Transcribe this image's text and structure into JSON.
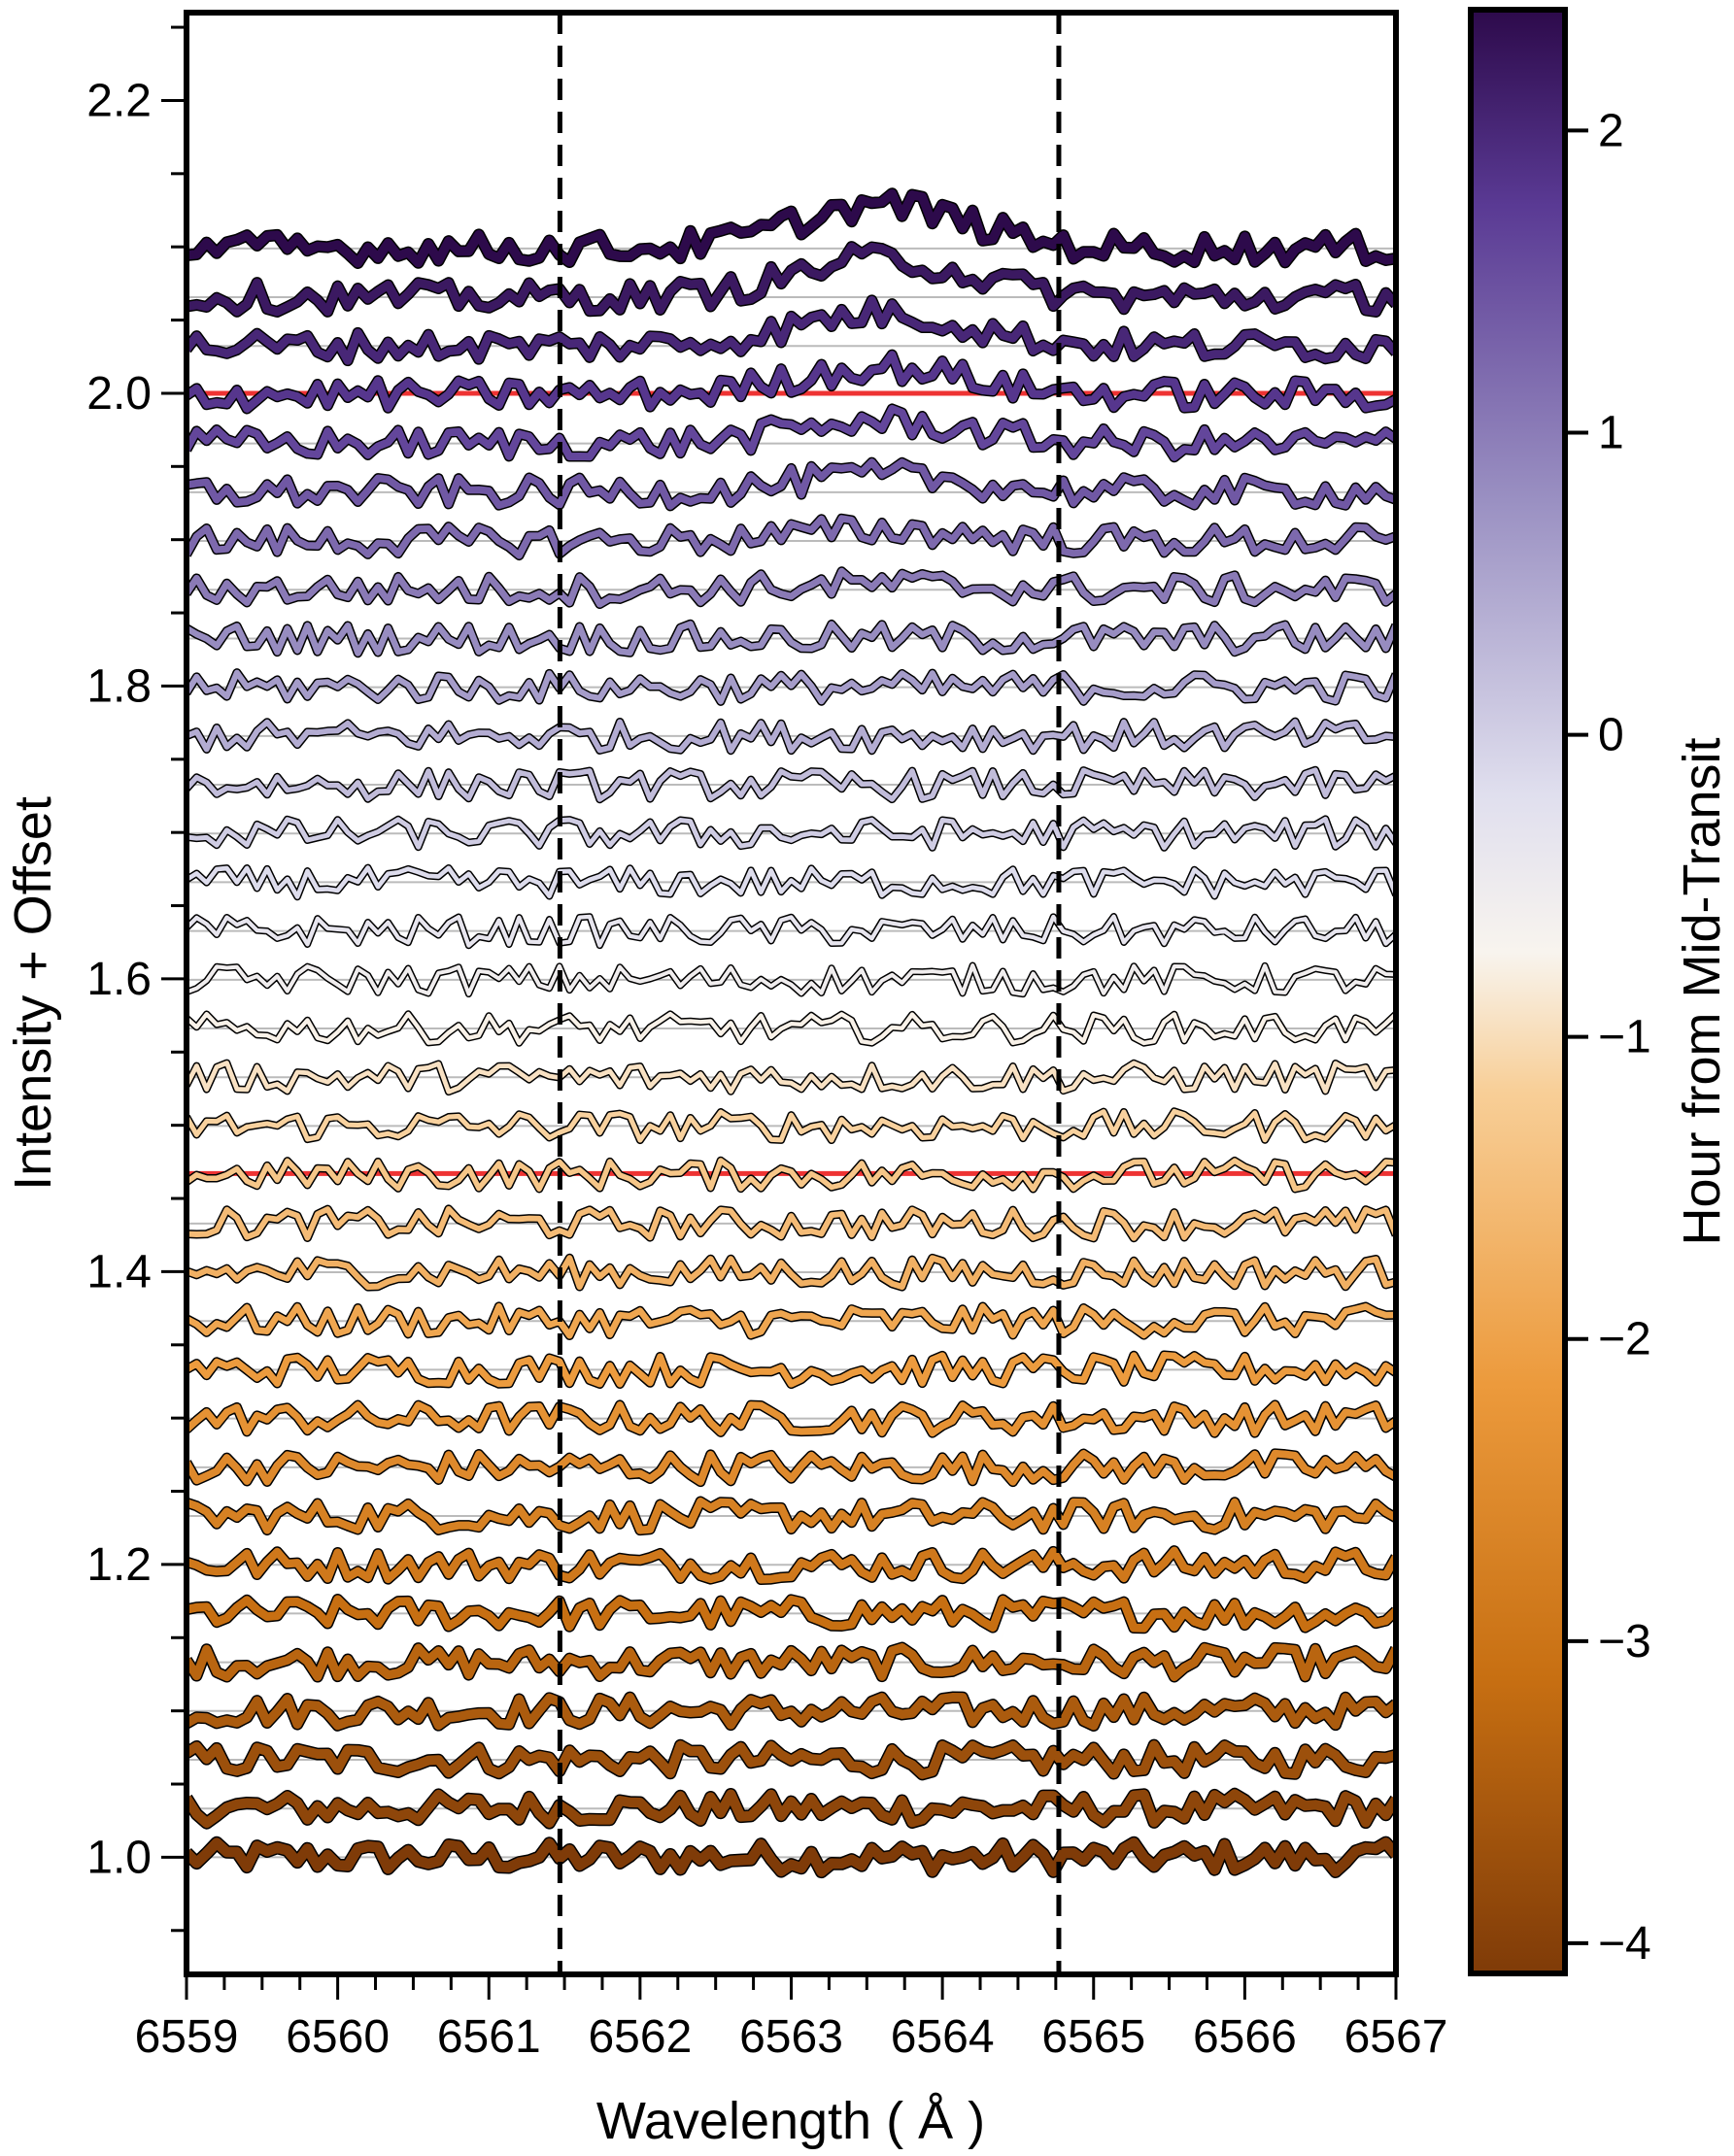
{
  "chart_data": {
    "type": "line",
    "xlabel": "Wavelength ( Å )",
    "ylabel": "Intensity + Offset",
    "xlim": [
      6559.0,
      6567.0
    ],
    "ylim": [
      0.92,
      2.26
    ],
    "x_ticks": [
      6559,
      6560,
      6561,
      6562,
      6563,
      6564,
      6565,
      6566,
      6567
    ],
    "x_tick_labels": [
      "6559",
      "6560",
      "6561",
      "6562",
      "6563",
      "6564",
      "6565",
      "6566",
      "6567"
    ],
    "y_ticks": [
      1.0,
      1.2,
      1.4,
      1.6,
      1.8,
      2.0,
      2.2
    ],
    "y_tick_labels": [
      "1.0",
      "1.2",
      "1.4",
      "1.6",
      "1.8",
      "2.0",
      "2.2"
    ],
    "vertical_lines": [
      6561.47,
      6564.77
    ],
    "red_reference_lines": [
      1.467,
      2.0
    ],
    "n_spectra": 34,
    "offset_step": 0.0333,
    "base_level": 1.0,
    "noise_amplitude": 0.01,
    "emission_feature": {
      "center": 6563.6,
      "width": 0.8,
      "max_amplitude": 0.03,
      "starting_spectrum_index": 26
    },
    "colorbar": {
      "label": "Hour from Mid-Transit",
      "range": [
        -4.1,
        2.4
      ],
      "ticks": [
        2,
        1,
        0,
        -1,
        -2,
        -3,
        -4
      ],
      "tick_labels": [
        "2",
        "1",
        "0",
        "−1",
        "−2",
        "−3",
        "−4"
      ],
      "colors": {
        "top": "#2d0a4b",
        "upper": "#5a3a94",
        "upper_mid": "#9a90c2",
        "mid": "#e0dfee",
        "center": "#f8f4ee",
        "lower_mid": "#f8cf98",
        "lower": "#ec9a3c",
        "low": "#c76f12",
        "bottom": "#7f3b08"
      }
    },
    "colors": {
      "reference_line": "#ee3333",
      "grid_line": "#bbbbbb",
      "line_outline": "#000000"
    }
  }
}
